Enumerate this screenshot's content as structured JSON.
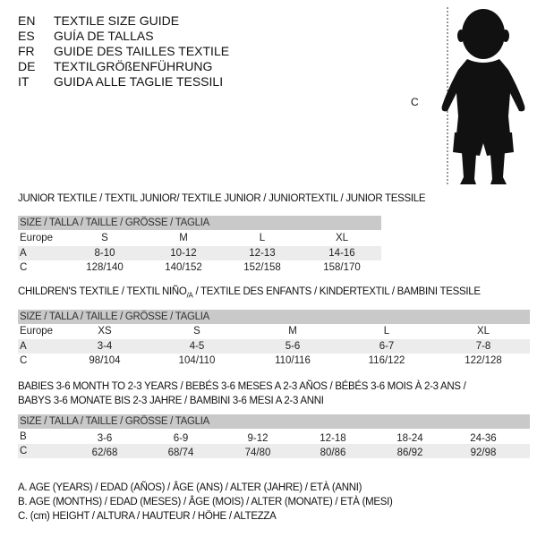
{
  "languages": [
    {
      "code": "EN",
      "title": "TEXTILE SIZE GUIDE"
    },
    {
      "code": "ES",
      "title": "GUÍA DE TALLAS"
    },
    {
      "code": "FR",
      "title": "GUIDE DES TAILLES TEXTILE"
    },
    {
      "code": "DE",
      "title": "TEXTILGRÖßENFÜHRUNG"
    },
    {
      "code": "IT",
      "title": "GUIDA ALLE TAGLIE TESSILI"
    }
  ],
  "figure": {
    "label": "C",
    "icon": "baby-silhouette"
  },
  "junior": {
    "heading": "JUNIOR TEXTILE / TEXTIL JUNIOR/ TEXTILE JUNIOR / JUNIORTEXTIL / JUNIOR TESSILE",
    "size_header": "SIZE / TALLA / TAILLE / GRÖSSE / TAGLIA",
    "rows": [
      {
        "label": "Europe",
        "values": [
          "S",
          "M",
          "L",
          "XL"
        ]
      },
      {
        "label": "A",
        "values": [
          "8-10",
          "10-12",
          "12-13",
          "14-16"
        ]
      },
      {
        "label": "C",
        "values": [
          "128/140",
          "140/152",
          "152/158",
          "158/170"
        ]
      }
    ]
  },
  "children": {
    "heading_pre": "CHILDREN'S TEXTILE / TEXTIL NIÑO",
    "heading_sub": "/A",
    "heading_post": " / TEXTILE DES ENFANTS / KINDERTEXTIL / BAMBINI TESSILE",
    "size_header": "SIZE / TALLA / TAILLE / GRÖSSE / TAGLIA",
    "rows": [
      {
        "label": "Europe",
        "values": [
          "XS",
          "S",
          "M",
          "L",
          "XL"
        ]
      },
      {
        "label": "A",
        "values": [
          "3-4",
          "4-5",
          "5-6",
          "6-7",
          "7-8"
        ]
      },
      {
        "label": "C",
        "values": [
          "98/104",
          "104/110",
          "110/116",
          "116/122",
          "122/128"
        ]
      }
    ]
  },
  "babies": {
    "heading_line1": "BABIES 3-6 MONTH TO 2-3 YEARS / BEBÉS 3-6 MESES A 2-3 AÑOS / BÉBÉS 3-6 MOIS À 2-3 ANS /",
    "heading_line2": "BABYS 3-6 MONATE BIS 2-3 JAHRE / BAMBINI 3-6 MESI A 2-3 ANNI",
    "size_header": "SIZE / TALLA / TAILLE / GRÖSSE / TAGLIA",
    "rows": [
      {
        "label": "B",
        "values": [
          "3-6",
          "6-9",
          "9-12",
          "12-18",
          "18-24",
          "24-36"
        ]
      },
      {
        "label": "C",
        "values": [
          "62/68",
          "68/74",
          "74/80",
          "80/86",
          "86/92",
          "92/98"
        ]
      }
    ]
  },
  "legend": [
    "A. AGE (YEARS) / EDAD (AÑOS) / ÂGE (ANS) / ALTER (JAHRE) / ETÀ (ANNI)",
    "B. AGE (MONTHS) / EDAD (MESES) / ÂGE (MOIS) / ALTER (MONATE) / ETÀ (MESI)",
    "C. (cm) HEIGHT / ALTURA / HAUTEUR / HÖHE / ALTEZZA"
  ]
}
